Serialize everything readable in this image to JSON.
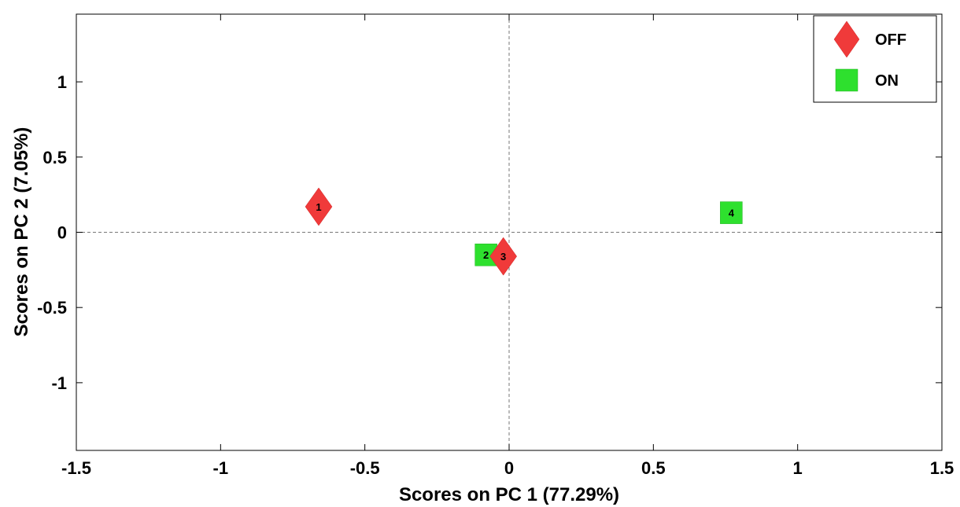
{
  "chart_data": {
    "type": "scatter",
    "xlabel": "Scores on PC 1 (77.29%)",
    "ylabel": "Scores on PC 2 (7.05%)",
    "xlim": [
      -1.5,
      1.5
    ],
    "ylim": [
      -1.45,
      1.45
    ],
    "xticks": [
      -1.5,
      -1,
      -0.5,
      0,
      0.5,
      1,
      1.5
    ],
    "xtick_labels": [
      "-1.5",
      "-1",
      "-0.5",
      "0",
      "0.5",
      "1",
      "1.5"
    ],
    "yticks": [
      -1,
      -0.5,
      0,
      0.5,
      1
    ],
    "ytick_labels": [
      "-1",
      "-0.5",
      "0",
      "0.5",
      "1"
    ],
    "reference_lines": {
      "x": 0,
      "y": 0,
      "style": "dashed"
    },
    "grid": false,
    "legend_position": "top-right",
    "series": [
      {
        "name": "OFF",
        "marker": "diamond",
        "color": "#f03a3a",
        "points": [
          {
            "label": "1",
            "x": -0.66,
            "y": 0.17
          },
          {
            "label": "3",
            "x": -0.02,
            "y": -0.16
          }
        ]
      },
      {
        "name": "ON",
        "marker": "square",
        "color": "#2ee02e",
        "points": [
          {
            "label": "2",
            "x": -0.08,
            "y": -0.15
          },
          {
            "label": "4",
            "x": 0.77,
            "y": 0.13
          }
        ]
      }
    ]
  }
}
